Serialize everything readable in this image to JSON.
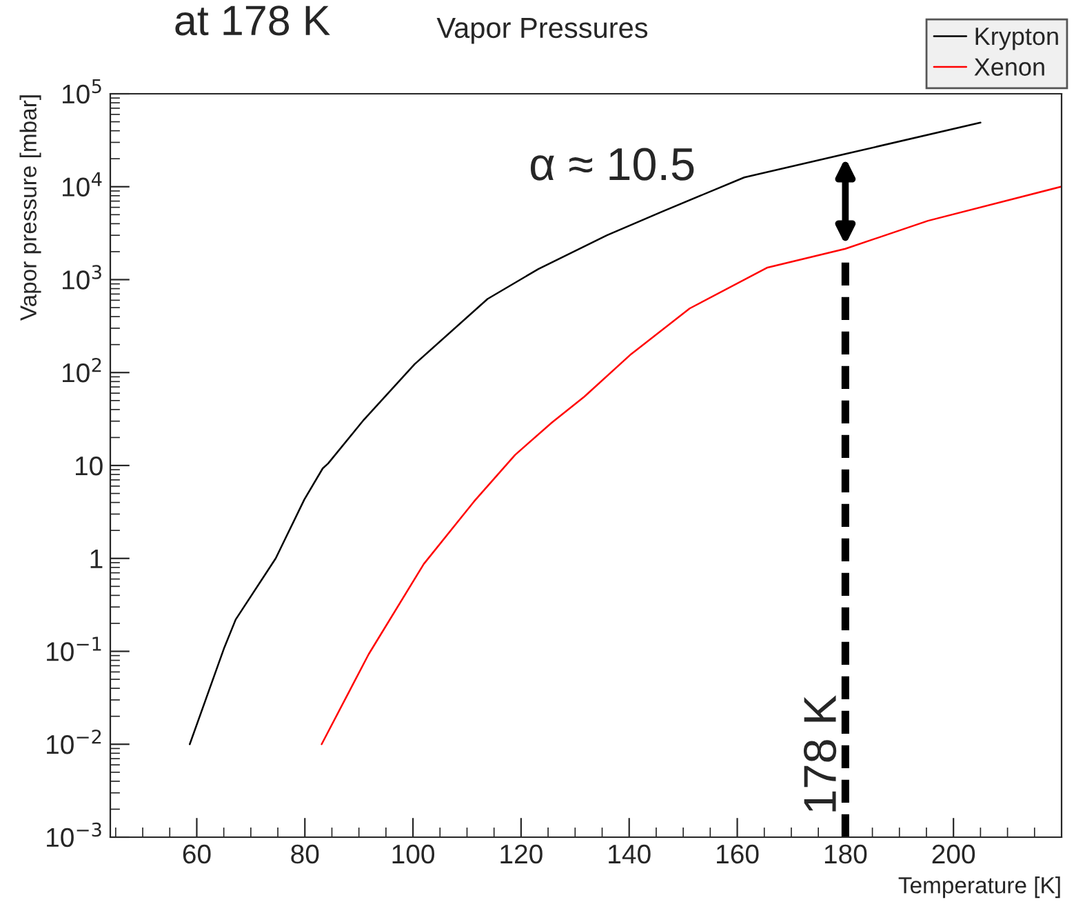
{
  "chart_data": {
    "type": "line",
    "title": "Vapor Pressures",
    "xlabel": "Temperature [K]",
    "ylabel": "Vapor pressure [mbar]",
    "series": [
      {
        "name": "Krypton",
        "color": "#000000",
        "x": [
          58.7,
          65.1,
          67.2,
          74.6,
          79.9,
          83.3,
          84.3,
          90.9,
          100.3,
          113.8,
          123.2,
          135.9,
          146.1,
          161.3,
          180,
          205
        ],
        "values": [
          0.01,
          0.11,
          0.22,
          1,
          4.3,
          9.3,
          10.5,
          31,
          123,
          620,
          1300,
          3000,
          5400,
          12600,
          22500,
          49000
        ]
      },
      {
        "name": "Xenon",
        "color": "#ff0000",
        "x": [
          83.1,
          91.8,
          102,
          111.3,
          118.9,
          125.7,
          131.7,
          140.2,
          151.2,
          165.6,
          180,
          195.3,
          219.9
        ],
        "values": [
          0.01,
          0.093,
          0.87,
          4.1,
          13,
          29,
          55,
          155,
          490,
          1350,
          2150,
          4300,
          10000
        ]
      }
    ],
    "log": "y",
    "xlim": [
      44,
      220
    ],
    "ylim": [
      0.001,
      100000
    ],
    "xticks": [
      60,
      80,
      100,
      120,
      140,
      160,
      180,
      200
    ],
    "yticks": [
      {
        "value": 0.001,
        "label": "10$^{−3}$"
      },
      {
        "value": 0.01,
        "label": "10$^{−2}$"
      },
      {
        "value": 0.1,
        "label": "10$^{−1}$"
      },
      1,
      10,
      {
        "value": 100,
        "label": "10$^{2}$"
      },
      {
        "value": 1000,
        "label": "10$^{3}$"
      },
      {
        "value": 10000,
        "label": "10$^{4}$"
      },
      {
        "value": 100000,
        "label": "10$^{5}$"
      }
    ],
    "ref_lines": [
      {
        "axis": "x",
        "value": 180,
        "label": "178 K",
        "color": "#000000",
        "line_style": "dashed"
      }
    ],
    "annotations": [
      "α ≈ 10.5",
      "at 178 K"
    ],
    "legend": "top right",
    "grid": false,
    "marker": "none",
    "line_style": "solid"
  }
}
